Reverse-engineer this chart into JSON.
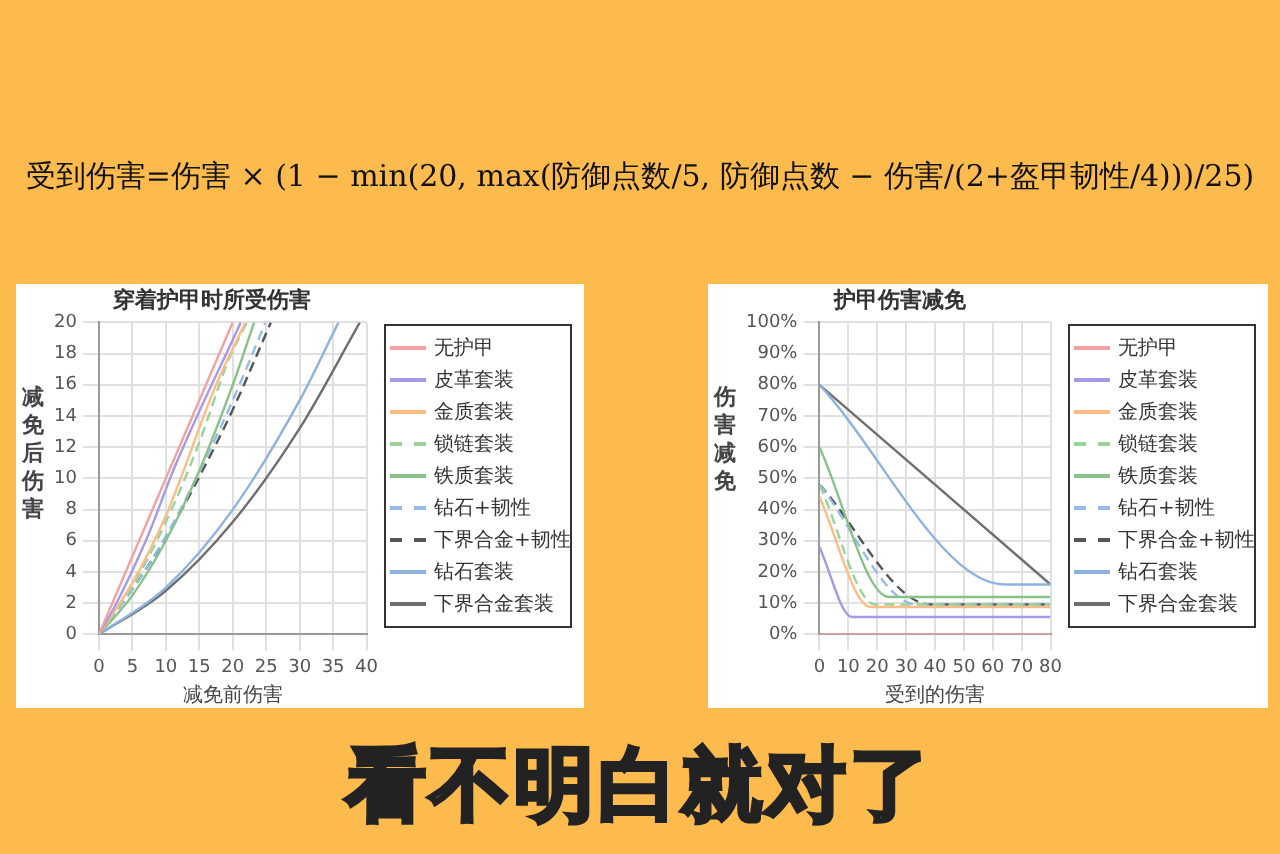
{
  "chart_data": [
    {
      "type": "other",
      "annotations": [
        "受到伤害=伤害 × (1 − min(20, max(防御点数/5, 防御点数 − 伤害/(2+盔甲韧性/4)))/25)"
      ]
    },
    {
      "type": "line",
      "title": "穿着护甲时所受伤害",
      "xlabel": "减免前伤害",
      "ylabel": "减免后伤害",
      "xlim": [
        0,
        40
      ],
      "ylim": [
        0,
        20
      ],
      "xticks": [
        0,
        5,
        10,
        15,
        20,
        25,
        30,
        35,
        40
      ],
      "yticks": [
        0,
        2,
        4,
        6,
        8,
        10,
        12,
        14,
        16,
        18,
        20
      ],
      "grid": true,
      "legend": "right",
      "marker": "none",
      "series": [
        {
          "name": "无护甲",
          "color": "#f2a0a0",
          "x": [
            0,
            20
          ],
          "values": [
            0,
            20
          ]
        },
        {
          "name": "皮革套装",
          "color": "#a898e6",
          "x": [
            0,
            2.5,
            5,
            7.5,
            11.2,
            21.2
          ],
          "values": [
            0,
            1.9,
            4.1,
            6.5,
            10.6,
            20
          ]
        },
        {
          "name": "金质套装",
          "color": "#fbbd85",
          "x": [
            0,
            5,
            10,
            17.6,
            21.9
          ],
          "values": [
            0,
            3.3,
            7.6,
            16.1,
            20
          ]
        },
        {
          "name": "锁链套装",
          "color": "#98d49a",
          "line_style": "dashed",
          "x": [
            0,
            5,
            10,
            15,
            19.2,
            22.1
          ],
          "values": [
            0,
            3.1,
            7.2,
            12.3,
            17.4,
            20
          ]
        },
        {
          "name": "铁质套装",
          "color": "#86c289",
          "x": [
            0,
            5,
            10,
            15,
            20,
            23.2
          ],
          "values": [
            0,
            2.5,
            6,
            10.5,
            16,
            20
          ]
        },
        {
          "name": "钻石+韧性",
          "color": "#96bce8",
          "line_style": "dashed",
          "x": [
            0,
            5,
            10,
            15,
            20,
            24.9
          ],
          "values": [
            0,
            2.9,
            6.3,
            10.4,
            15,
            20
          ]
        },
        {
          "name": "下界合金+韧性",
          "color": "#555555",
          "line_style": "dashed",
          "x": [
            0,
            5,
            10,
            15,
            20,
            25.7
          ],
          "values": [
            0,
            2.9,
            6.2,
            10.1,
            14.4,
            20
          ]
        },
        {
          "name": "钻石套装",
          "color": "#8db2e0",
          "x": [
            0,
            10,
            20,
            30,
            35.8
          ],
          "values": [
            0,
            3,
            8,
            15,
            20
          ]
        },
        {
          "name": "下界合金套装",
          "color": "#6e6e6e",
          "x": [
            0,
            10,
            20,
            30,
            39
          ],
          "values": [
            0,
            2.8,
            7.2,
            13.2,
            20
          ]
        }
      ]
    },
    {
      "type": "line",
      "title": "护甲伤害减免",
      "xlabel": "受到的伤害",
      "ylabel": "伤害减免",
      "xlim": [
        0,
        80
      ],
      "ylim": [
        0,
        100
      ],
      "xticks": [
        0,
        10,
        20,
        30,
        40,
        50,
        60,
        70,
        80
      ],
      "yticks": [
        {
          "value": 0,
          "label": "0%"
        },
        {
          "value": 10,
          "label": "10%"
        },
        {
          "value": 20,
          "label": "20%"
        },
        {
          "value": 30,
          "label": "30%"
        },
        {
          "value": 40,
          "label": "40%"
        },
        {
          "value": 50,
          "label": "50%"
        },
        {
          "value": 60,
          "label": "60%"
        },
        {
          "value": 70,
          "label": "70%"
        },
        {
          "value": 80,
          "label": "80%"
        },
        {
          "value": 90,
          "label": "90%"
        },
        {
          "value": 100,
          "label": "100%"
        }
      ],
      "grid": true,
      "legend": "right",
      "marker": "none",
      "series": [
        {
          "name": "无护甲",
          "color": "#f2a0a0",
          "x": [
            0,
            80
          ],
          "values": [
            0,
            0
          ]
        },
        {
          "name": "皮革套装",
          "color": "#a898e6",
          "x": [
            0,
            11.2,
            80
          ],
          "values": [
            28,
            5.6,
            5.6
          ]
        },
        {
          "name": "金质套装",
          "color": "#fbbd85",
          "x": [
            0,
            17.6,
            80
          ],
          "values": [
            44,
            8.8,
            8.8
          ]
        },
        {
          "name": "锁链套装",
          "color": "#98d49a",
          "line_style": "dashed",
          "x": [
            0,
            19.2,
            80
          ],
          "values": [
            48,
            9.6,
            9.6
          ]
        },
        {
          "name": "铁质套装",
          "color": "#86c289",
          "x": [
            0,
            24,
            80
          ],
          "values": [
            60,
            12,
            12
          ]
        },
        {
          "name": "钻石+韧性",
          "color": "#96bce8",
          "line_style": "dashed",
          "x": [
            0,
            33.6,
            80
          ],
          "values": [
            48,
            9.6,
            9.6
          ]
        },
        {
          "name": "下界合金+韧性",
          "color": "#555555",
          "line_style": "dashed",
          "x": [
            0,
            38.4,
            80
          ],
          "values": [
            48,
            9.6,
            9.6
          ]
        },
        {
          "name": "钻石套装",
          "color": "#8db2e0",
          "x": [
            0,
            64,
            80
          ],
          "values": [
            80,
            16,
            16
          ]
        },
        {
          "name": "下界合金套装",
          "color": "#6e6e6e",
          "x": [
            0,
            80
          ],
          "values": [
            80,
            16
          ]
        }
      ]
    },
    {
      "type": "other",
      "annotations": [
        "看不明白就对了"
      ]
    }
  ]
}
